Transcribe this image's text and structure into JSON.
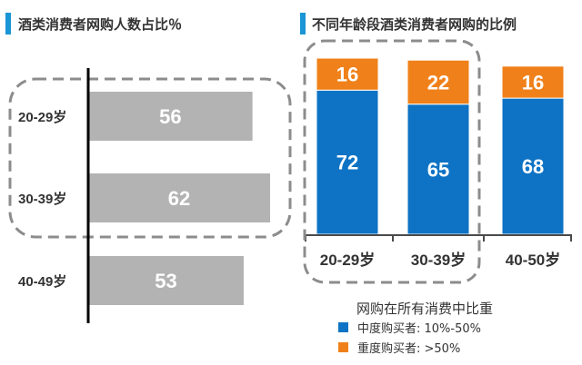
{
  "colors": {
    "accent": "#1a95d6",
    "gray_bar": "#b3b3b3",
    "blue": "#0e73c4",
    "orange": "#f0811a",
    "dash": "#8c8c8c"
  },
  "chart_data": [
    {
      "type": "bar",
      "orientation": "horizontal",
      "title": "酒类消费者网购人数占比％",
      "categories": [
        "20-29岁",
        "30-39岁",
        "40-49岁"
      ],
      "values": [
        56,
        62,
        53
      ],
      "highlighted": [
        "20-29岁",
        "30-39岁"
      ]
    },
    {
      "type": "bar",
      "stacked": true,
      "title": "不同年龄段酒类消费者网购的比例",
      "categories": [
        "20-29岁",
        "30-39岁",
        "40-50岁"
      ],
      "series": [
        {
          "name": "中度购买者: 10%-50%",
          "values": [
            72,
            65,
            68
          ],
          "color": "#0e73c4"
        },
        {
          "name": "重度购买者: >50%",
          "values": [
            16,
            22,
            16
          ],
          "color": "#f0811a"
        }
      ],
      "legend_title": "网购在所有消费中比重",
      "legend_position": "bottom-right",
      "highlighted": [
        "20-29岁",
        "30-39岁"
      ]
    }
  ]
}
